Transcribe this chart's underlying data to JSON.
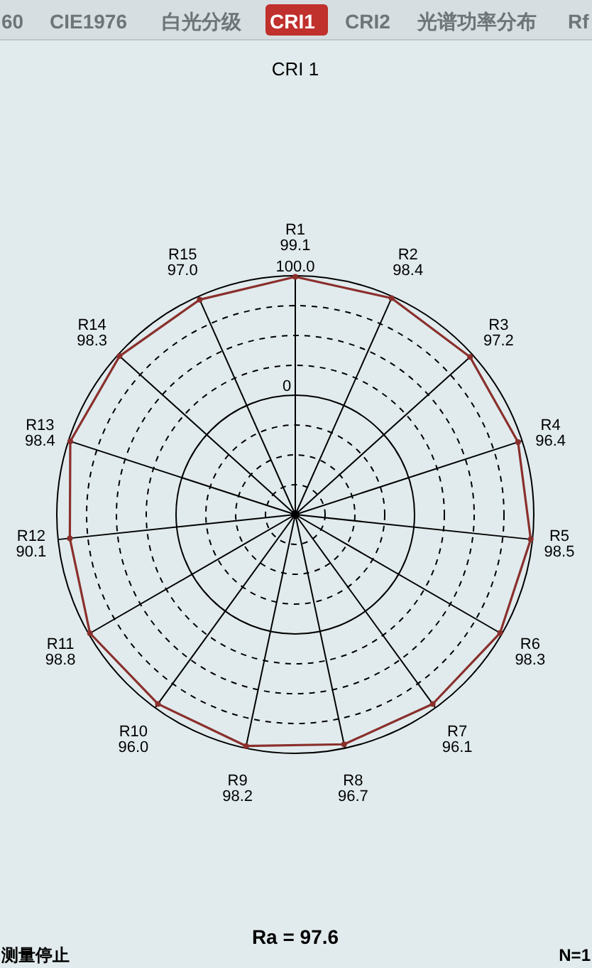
{
  "chart_data": {
    "type": "radar",
    "title": "CRI 1",
    "categories": [
      "R1",
      "R2",
      "R3",
      "R4",
      "R5",
      "R6",
      "R7",
      "R8",
      "R9",
      "R10",
      "R11",
      "R12",
      "R13",
      "R14",
      "R15"
    ],
    "series": [
      {
        "color": "#8a2f2c",
        "values": [
          99.1,
          98.4,
          97.2,
          96.4,
          98.5,
          98.3,
          96.1,
          96.7,
          98.2,
          96.0,
          98.8,
          90.1,
          98.4,
          98.3,
          97.0
        ],
        "value_labels": [
          "99.1",
          "98.4",
          "97.2",
          "96.4",
          "98.5",
          "98.3",
          "96.1",
          "96.7",
          "98.2",
          "96.0",
          "98.8",
          "90.1",
          "98.4",
          "98.3",
          "97.0"
        ]
      }
    ],
    "ylim": [
      -100,
      100
    ],
    "yticks": [
      0,
      {
        "value": 100,
        "label": "100.0"
      }
    ],
    "grid": true,
    "marker": "circle",
    "annotations": [
      "60",
      "CIE1976",
      "白光分级",
      "CRI1",
      "CRI2",
      "光谱功率分布",
      "Rf",
      "Ra = 97.6",
      "测量停止",
      "N=1"
    ]
  }
}
